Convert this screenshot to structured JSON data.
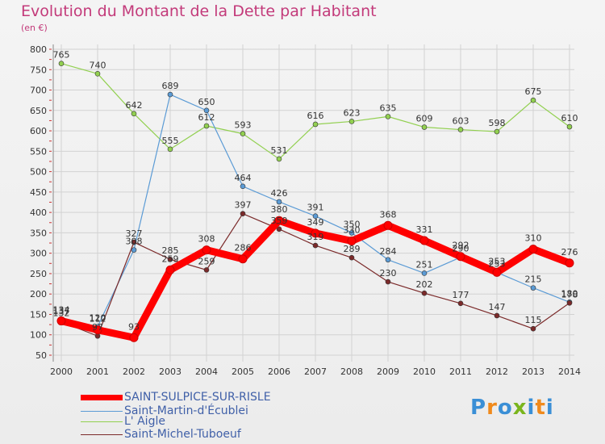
{
  "logo": {
    "letters": [
      "P",
      "r",
      "o",
      "x",
      "i",
      "t",
      "i"
    ],
    "colors": [
      "#3a8fd6",
      "#f08a1c",
      "#3a8fd6",
      "#7ab51d",
      "#3a8fd6",
      "#f08a1c",
      "#3a8fd6"
    ]
  },
  "chart_data": {
    "type": "line",
    "title": "Evolution du Montant de la Dette par Habitant",
    "subtitle": "(en €)",
    "x": [
      "2000",
      "2001",
      "2002",
      "2003",
      "2004",
      "2005",
      "2006",
      "2007",
      "2008",
      "2009",
      "2010",
      "2011",
      "2012",
      "2013",
      "2014"
    ],
    "ylim": [
      50,
      800
    ],
    "yticks": [
      50,
      100,
      150,
      200,
      250,
      300,
      350,
      400,
      450,
      500,
      550,
      600,
      650,
      700,
      750,
      800
    ],
    "grid": true,
    "legend_position": "bottom-left",
    "series": [
      {
        "name": "SAINT-SULPICE-SUR-RISLE",
        "color": "#ff0000",
        "width": 9,
        "values": [
          134,
          112,
          93,
          259,
          308,
          286,
          380,
          349,
          330,
          368,
          331,
          292,
          253,
          310,
          276
        ]
      },
      {
        "name": "Saint-Martin-d'Écublei",
        "color": "#5b9bd5",
        "width": 1.2,
        "values": [
          137,
          120,
          308,
          689,
          650,
          464,
          426,
          391,
          350,
          284,
          251,
          290,
          253,
          215,
          180
        ]
      },
      {
        "name": "L' Aigle",
        "color": "#92d050",
        "width": 1.2,
        "values": [
          765,
          740,
          642,
          555,
          612,
          593,
          531,
          616,
          623,
          635,
          609,
          603,
          598,
          675,
          610
        ]
      },
      {
        "name": "Saint-Michel-Tuboeuf",
        "color": "#7b2a2a",
        "width": 1.2,
        "values": [
          132,
          97,
          327,
          285,
          259,
          397,
          359,
          319,
          289,
          230,
          202,
          177,
          147,
          115,
          178
        ]
      }
    ]
  }
}
